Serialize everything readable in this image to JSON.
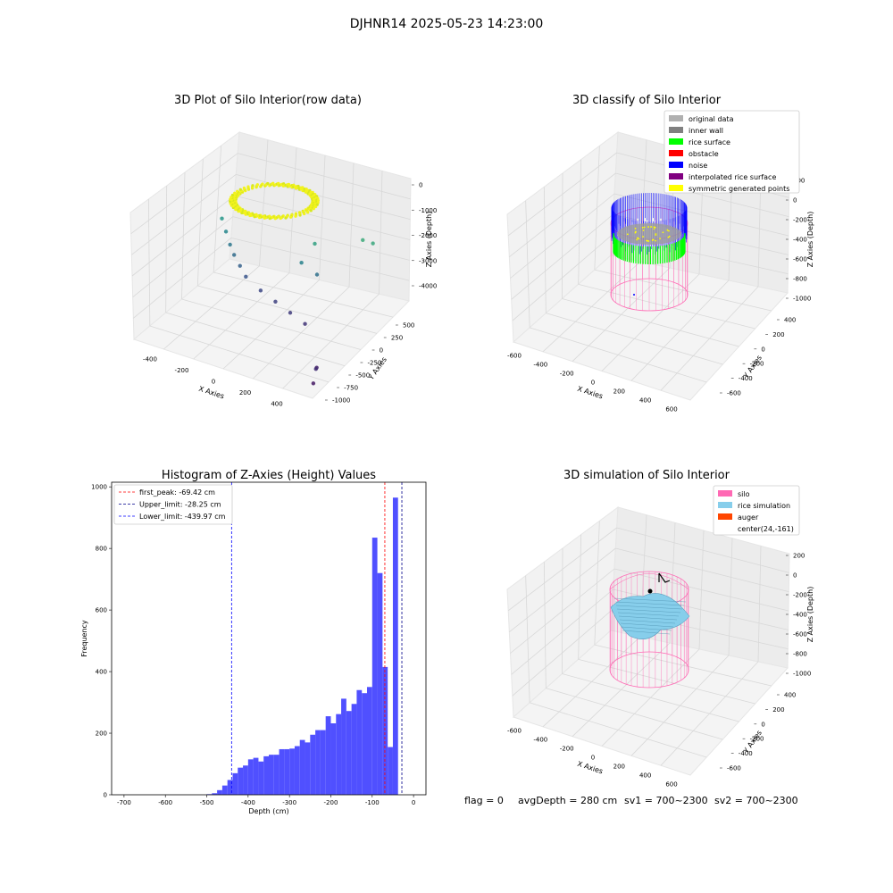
{
  "figure": {
    "suptitle": "DJHNR14 2025-05-23 14:23:00"
  },
  "chart_data": [
    {
      "type": "scatter",
      "projection": "3d",
      "title": "3D Plot of Silo Interior(row data)",
      "xlabel": "X Axies",
      "ylabel": "Y Axies",
      "zlabel": "Z Axies (Depth)",
      "xticks": [
        "-400",
        "-200",
        "0",
        "200",
        "400"
      ],
      "yticks": [
        "500",
        "250",
        "0",
        "-250",
        "-500",
        "-750",
        "-1000"
      ],
      "zticks": [
        "0",
        "-1000",
        "-2000",
        "-3000",
        "-4000"
      ],
      "xlim": [
        -500,
        500
      ],
      "ylim": [
        -1000,
        600
      ],
      "zlim": [
        -4600,
        0
      ],
      "grid": true,
      "colormap": "viridis",
      "annotation": "ring of dense points near the surface; sparse outliers deeper",
      "points": [
        {
          "x": -420,
          "y": 200,
          "z": -2200
        },
        {
          "x": -380,
          "y": 150,
          "z": -2500
        },
        {
          "x": -340,
          "y": 100,
          "z": -2800
        },
        {
          "x": -300,
          "y": 50,
          "z": -3000
        },
        {
          "x": -250,
          "y": 0,
          "z": -3200
        },
        {
          "x": -200,
          "y": -50,
          "z": -3400
        },
        {
          "x": -100,
          "y": -100,
          "z": -3600
        },
        {
          "x": 0,
          "y": -150,
          "z": -3700
        },
        {
          "x": 100,
          "y": -200,
          "z": -3800
        },
        {
          "x": 200,
          "y": -250,
          "z": -3900
        },
        {
          "x": 100,
          "y": 200,
          "z": -2000
        },
        {
          "x": 60,
          "y": 100,
          "z": -2600
        },
        {
          "x": 140,
          "y": 120,
          "z": -2900
        },
        {
          "x": 300,
          "y": 400,
          "z": -1800
        },
        {
          "x": 350,
          "y": 420,
          "z": -1850
        },
        {
          "x": 420,
          "y": -700,
          "z": -4200
        },
        {
          "x": 450,
          "y": -800,
          "z": -4000
        },
        {
          "x": 470,
          "y": -900,
          "z": -4300
        }
      ]
    },
    {
      "type": "scatter",
      "projection": "3d",
      "title": "3D classify of Silo Interior",
      "xlabel": "X Axies",
      "ylabel": "Y Axies",
      "zlabel": "Z Axies (Depth)",
      "xticks": [
        "-600",
        "-400",
        "-200",
        "0",
        "200",
        "400",
        "600"
      ],
      "yticks": [
        "400",
        "200",
        "0",
        "-200",
        "-400",
        "-600"
      ],
      "zticks": [
        "200",
        "0",
        "-200",
        "-400",
        "-600",
        "-800",
        "-1000"
      ],
      "xlim": [
        -700,
        700
      ],
      "ylim": [
        -700,
        500
      ],
      "zlim": [
        -1000,
        200
      ],
      "grid": true,
      "legend_position": "upper-right",
      "legend": [
        {
          "label": "original data",
          "color": "#b0b0b0"
        },
        {
          "label": "inner wall",
          "color": "#808080"
        },
        {
          "label": "rice surface",
          "color": "#00ff00"
        },
        {
          "label": "obstacle",
          "color": "#ff0000"
        },
        {
          "label": "noise",
          "color": "#0000ff"
        },
        {
          "label": "interpolated rice surface",
          "color": "#800080"
        },
        {
          "label": "symmetric generated points",
          "color": "#ffff00"
        }
      ],
      "silo_color": "#ff69b4"
    },
    {
      "type": "histogram",
      "title": "Histogram of Z-Axies (Height) Values",
      "xlabel": "Depth (cm)",
      "ylabel": "Frequency",
      "xlim": [
        -730,
        30
      ],
      "ylim": [
        0,
        1015
      ],
      "xticks": [
        -700,
        -600,
        -500,
        -400,
        -300,
        -200,
        -100,
        0
      ],
      "yticks": [
        0,
        200,
        400,
        600,
        800,
        1000
      ],
      "bar_color": "#5050ff",
      "bin_width": 12.5,
      "bins_left": -500,
      "values": [
        2,
        5,
        15,
        30,
        48,
        70,
        88,
        95,
        115,
        120,
        108,
        125,
        130,
        130,
        148,
        148,
        150,
        158,
        178,
        170,
        195,
        210,
        210,
        255,
        232,
        262,
        312,
        272,
        295,
        340,
        330,
        350,
        835,
        720,
        415,
        155,
        965
      ],
      "legend_position": "upper-left",
      "lines": [
        {
          "label": "first_peak: -69.42 cm",
          "x": -69.42,
          "color": "#ff0000"
        },
        {
          "label": "Upper_limit: -28.25 cm",
          "x": -28.25,
          "color": "#00008b"
        },
        {
          "label": "Lower_limit: -439.97 cm",
          "x": -439.97,
          "color": "#0000ff"
        }
      ]
    },
    {
      "type": "surface",
      "projection": "3d",
      "title": "3D simulation of Silo Interior",
      "xlabel": "X Axies",
      "ylabel": "Y Axies",
      "zlabel": "Z Axies (Depth)",
      "xticks": [
        "-600",
        "-400",
        "-200",
        "0",
        "200",
        "400",
        "600"
      ],
      "yticks": [
        "400",
        "200",
        "0",
        "-200",
        "-400",
        "-600"
      ],
      "zticks": [
        "200",
        "0",
        "-200",
        "-400",
        "-600",
        "-800",
        "-1000"
      ],
      "xlim": [
        -700,
        700
      ],
      "ylim": [
        -700,
        500
      ],
      "zlim": [
        -1000,
        200
      ],
      "grid": true,
      "legend_position": "upper-right",
      "legend": [
        {
          "label": "silo",
          "color": "#ff69b4"
        },
        {
          "label": "rice simulation",
          "color": "#87ceeb"
        },
        {
          "label": "auger",
          "color": "#ff4500"
        },
        {
          "label": "center(24,-161)",
          "color": ""
        }
      ],
      "center": {
        "x": 24,
        "y": -161
      }
    }
  ],
  "footer": {
    "flag": "flag = 0",
    "avg_depth": "avgDepth = 280 cm",
    "sv1": "sv1 = 700~2300",
    "sv2": "sv2 = 700~2300"
  }
}
